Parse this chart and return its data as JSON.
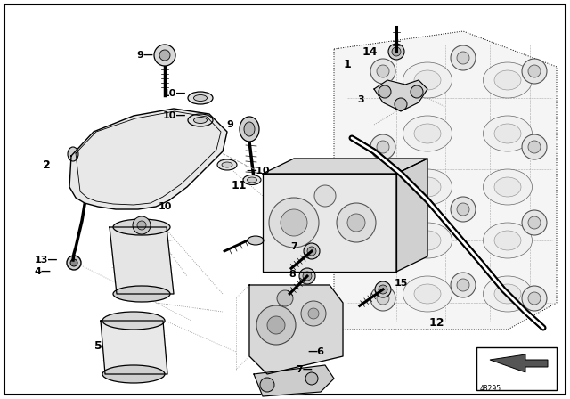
{
  "bg_color": "#ffffff",
  "border_color": "#000000",
  "fig_width": 6.4,
  "fig_height": 4.48,
  "dpi": 100,
  "line_color": "#000000",
  "label_fontsize": 8,
  "footer_text": "48295"
}
